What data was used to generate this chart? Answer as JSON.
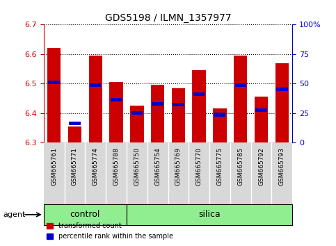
{
  "title": "GDS5198 / ILMN_1357977",
  "samples": [
    "GSM665761",
    "GSM665771",
    "GSM665774",
    "GSM665788",
    "GSM665750",
    "GSM665754",
    "GSM665769",
    "GSM665770",
    "GSM665775",
    "GSM665785",
    "GSM665792",
    "GSM665793"
  ],
  "groups": [
    "control",
    "control",
    "control",
    "control",
    "silica",
    "silica",
    "silica",
    "silica",
    "silica",
    "silica",
    "silica",
    "silica"
  ],
  "red_values": [
    6.62,
    6.355,
    6.595,
    6.505,
    6.425,
    6.495,
    6.485,
    6.545,
    6.415,
    6.595,
    6.455,
    6.57
  ],
  "blue_values": [
    6.505,
    6.365,
    6.495,
    6.445,
    6.4,
    6.432,
    6.43,
    6.465,
    6.395,
    6.495,
    6.41,
    6.48
  ],
  "y_min": 6.3,
  "y_max": 6.7,
  "y_ticks": [
    6.3,
    6.4,
    6.5,
    6.6,
    6.7
  ],
  "right_y_ticks": [
    0,
    25,
    50,
    75,
    100
  ],
  "right_y_labels": [
    "0",
    "25",
    "50",
    "75",
    "100%"
  ],
  "red_color": "#cc0000",
  "blue_color": "#0000cc",
  "bar_width": 0.65,
  "control_bg": "#90ee90",
  "silica_bg": "#90ee90",
  "agent_label": "agent",
  "group_control_label": "control",
  "group_silica_label": "silica",
  "legend_red": "transformed count",
  "legend_blue": "percentile rank within the sample",
  "bar_bottom": 6.3,
  "blue_bar_height": 0.012,
  "tick_label_fontsize": 6.5,
  "title_fontsize": 10,
  "n_control": 4,
  "n_silica": 8
}
